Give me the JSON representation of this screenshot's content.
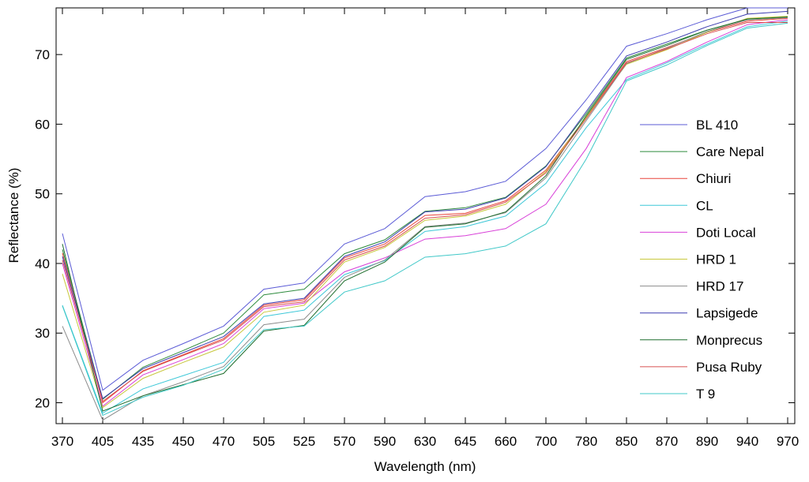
{
  "chart_data": {
    "type": "line",
    "xlabel": "Wavelength (nm)",
    "ylabel": "Reflectance (%)",
    "x": [
      "370",
      "405",
      "435",
      "450",
      "470",
      "505",
      "525",
      "570",
      "590",
      "630",
      "645",
      "660",
      "700",
      "780",
      "850",
      "870",
      "890",
      "940",
      "970"
    ],
    "ylim": [
      17,
      76.7
    ],
    "yticks": [
      20,
      30,
      40,
      50,
      60,
      70
    ],
    "grid": false,
    "legend_position": "right",
    "series": [
      {
        "name": "BL 410",
        "color": "#5b5bd6",
        "values": [
          44.3,
          21.8,
          26.1,
          28.5,
          31.0,
          36.3,
          37.2,
          42.8,
          45.0,
          49.6,
          50.3,
          51.8,
          56.5,
          63.5,
          71.2,
          73.0,
          75.0,
          76.7,
          76.7
        ]
      },
      {
        "name": "Care Nepal",
        "color": "#2e8b3e",
        "values": [
          42.0,
          20.5,
          25.1,
          27.5,
          30.0,
          35.5,
          36.3,
          41.4,
          43.4,
          47.5,
          48.0,
          49.5,
          54.0,
          61.5,
          69.5,
          71.5,
          73.5,
          75.0,
          75.3
        ]
      },
      {
        "name": "Chiuri",
        "color": "#e8443a",
        "values": [
          41.5,
          20.0,
          24.6,
          26.9,
          29.2,
          34.0,
          34.8,
          40.8,
          42.8,
          46.9,
          47.2,
          49.0,
          53.4,
          61.0,
          69.0,
          71.0,
          73.2,
          74.8,
          75.2
        ]
      },
      {
        "name": "CL",
        "color": "#3ec8d8",
        "values": [
          34.0,
          18.5,
          22.0,
          23.9,
          25.8,
          32.4,
          33.3,
          38.4,
          40.4,
          44.6,
          45.3,
          46.8,
          51.5,
          59.5,
          66.4,
          68.8,
          71.5,
          74.0,
          74.8
        ]
      },
      {
        "name": "Doti Local",
        "color": "#d840d8",
        "values": [
          40.0,
          19.5,
          24.0,
          26.2,
          28.5,
          33.5,
          34.3,
          38.8,
          40.8,
          43.5,
          44.0,
          45.0,
          48.5,
          56.5,
          66.7,
          69.0,
          71.8,
          74.3,
          75.0
        ]
      },
      {
        "name": "HRD 1",
        "color": "#c8c83c",
        "values": [
          38.5,
          19.3,
          23.5,
          25.8,
          28.0,
          33.0,
          34.0,
          40.2,
          42.3,
          46.2,
          46.8,
          48.5,
          53.2,
          61.0,
          68.6,
          70.7,
          73.2,
          75.2,
          75.5
        ]
      },
      {
        "name": "HRD 17",
        "color": "#8c8c8c",
        "values": [
          31.0,
          17.5,
          21.0,
          23.0,
          25.2,
          31.2,
          32.0,
          38.0,
          40.5,
          45.3,
          45.8,
          47.3,
          52.3,
          60.5,
          68.7,
          70.9,
          73.3,
          75.0,
          75.3
        ]
      },
      {
        "name": "Lapsigede",
        "color": "#3c3cb0",
        "values": [
          41.0,
          20.6,
          24.9,
          27.2,
          29.5,
          34.2,
          35.0,
          41.0,
          43.1,
          47.4,
          47.8,
          49.4,
          53.9,
          61.8,
          69.8,
          71.8,
          74.0,
          75.8,
          76.2
        ]
      },
      {
        "name": "Monprecus",
        "color": "#1f6e2e",
        "values": [
          42.8,
          18.8,
          21.0,
          22.6,
          24.2,
          30.3,
          31.1,
          37.5,
          40.2,
          45.2,
          45.7,
          47.4,
          52.6,
          61.2,
          69.3,
          71.3,
          73.5,
          75.1,
          75.4
        ]
      },
      {
        "name": "Pusa Ruby",
        "color": "#d85050",
        "values": [
          40.5,
          20.2,
          24.5,
          26.8,
          29.0,
          33.8,
          34.5,
          40.5,
          42.5,
          46.5,
          47.0,
          48.8,
          53.0,
          60.8,
          68.8,
          70.8,
          73.0,
          74.6,
          74.6
        ]
      },
      {
        "name": "T 9",
        "color": "#40c8c8",
        "values": [
          33.9,
          18.2,
          20.8,
          22.5,
          24.8,
          30.5,
          31.0,
          35.9,
          37.5,
          40.9,
          41.4,
          42.5,
          45.7,
          55.0,
          66.2,
          68.5,
          71.3,
          73.8,
          74.5
        ]
      }
    ]
  }
}
